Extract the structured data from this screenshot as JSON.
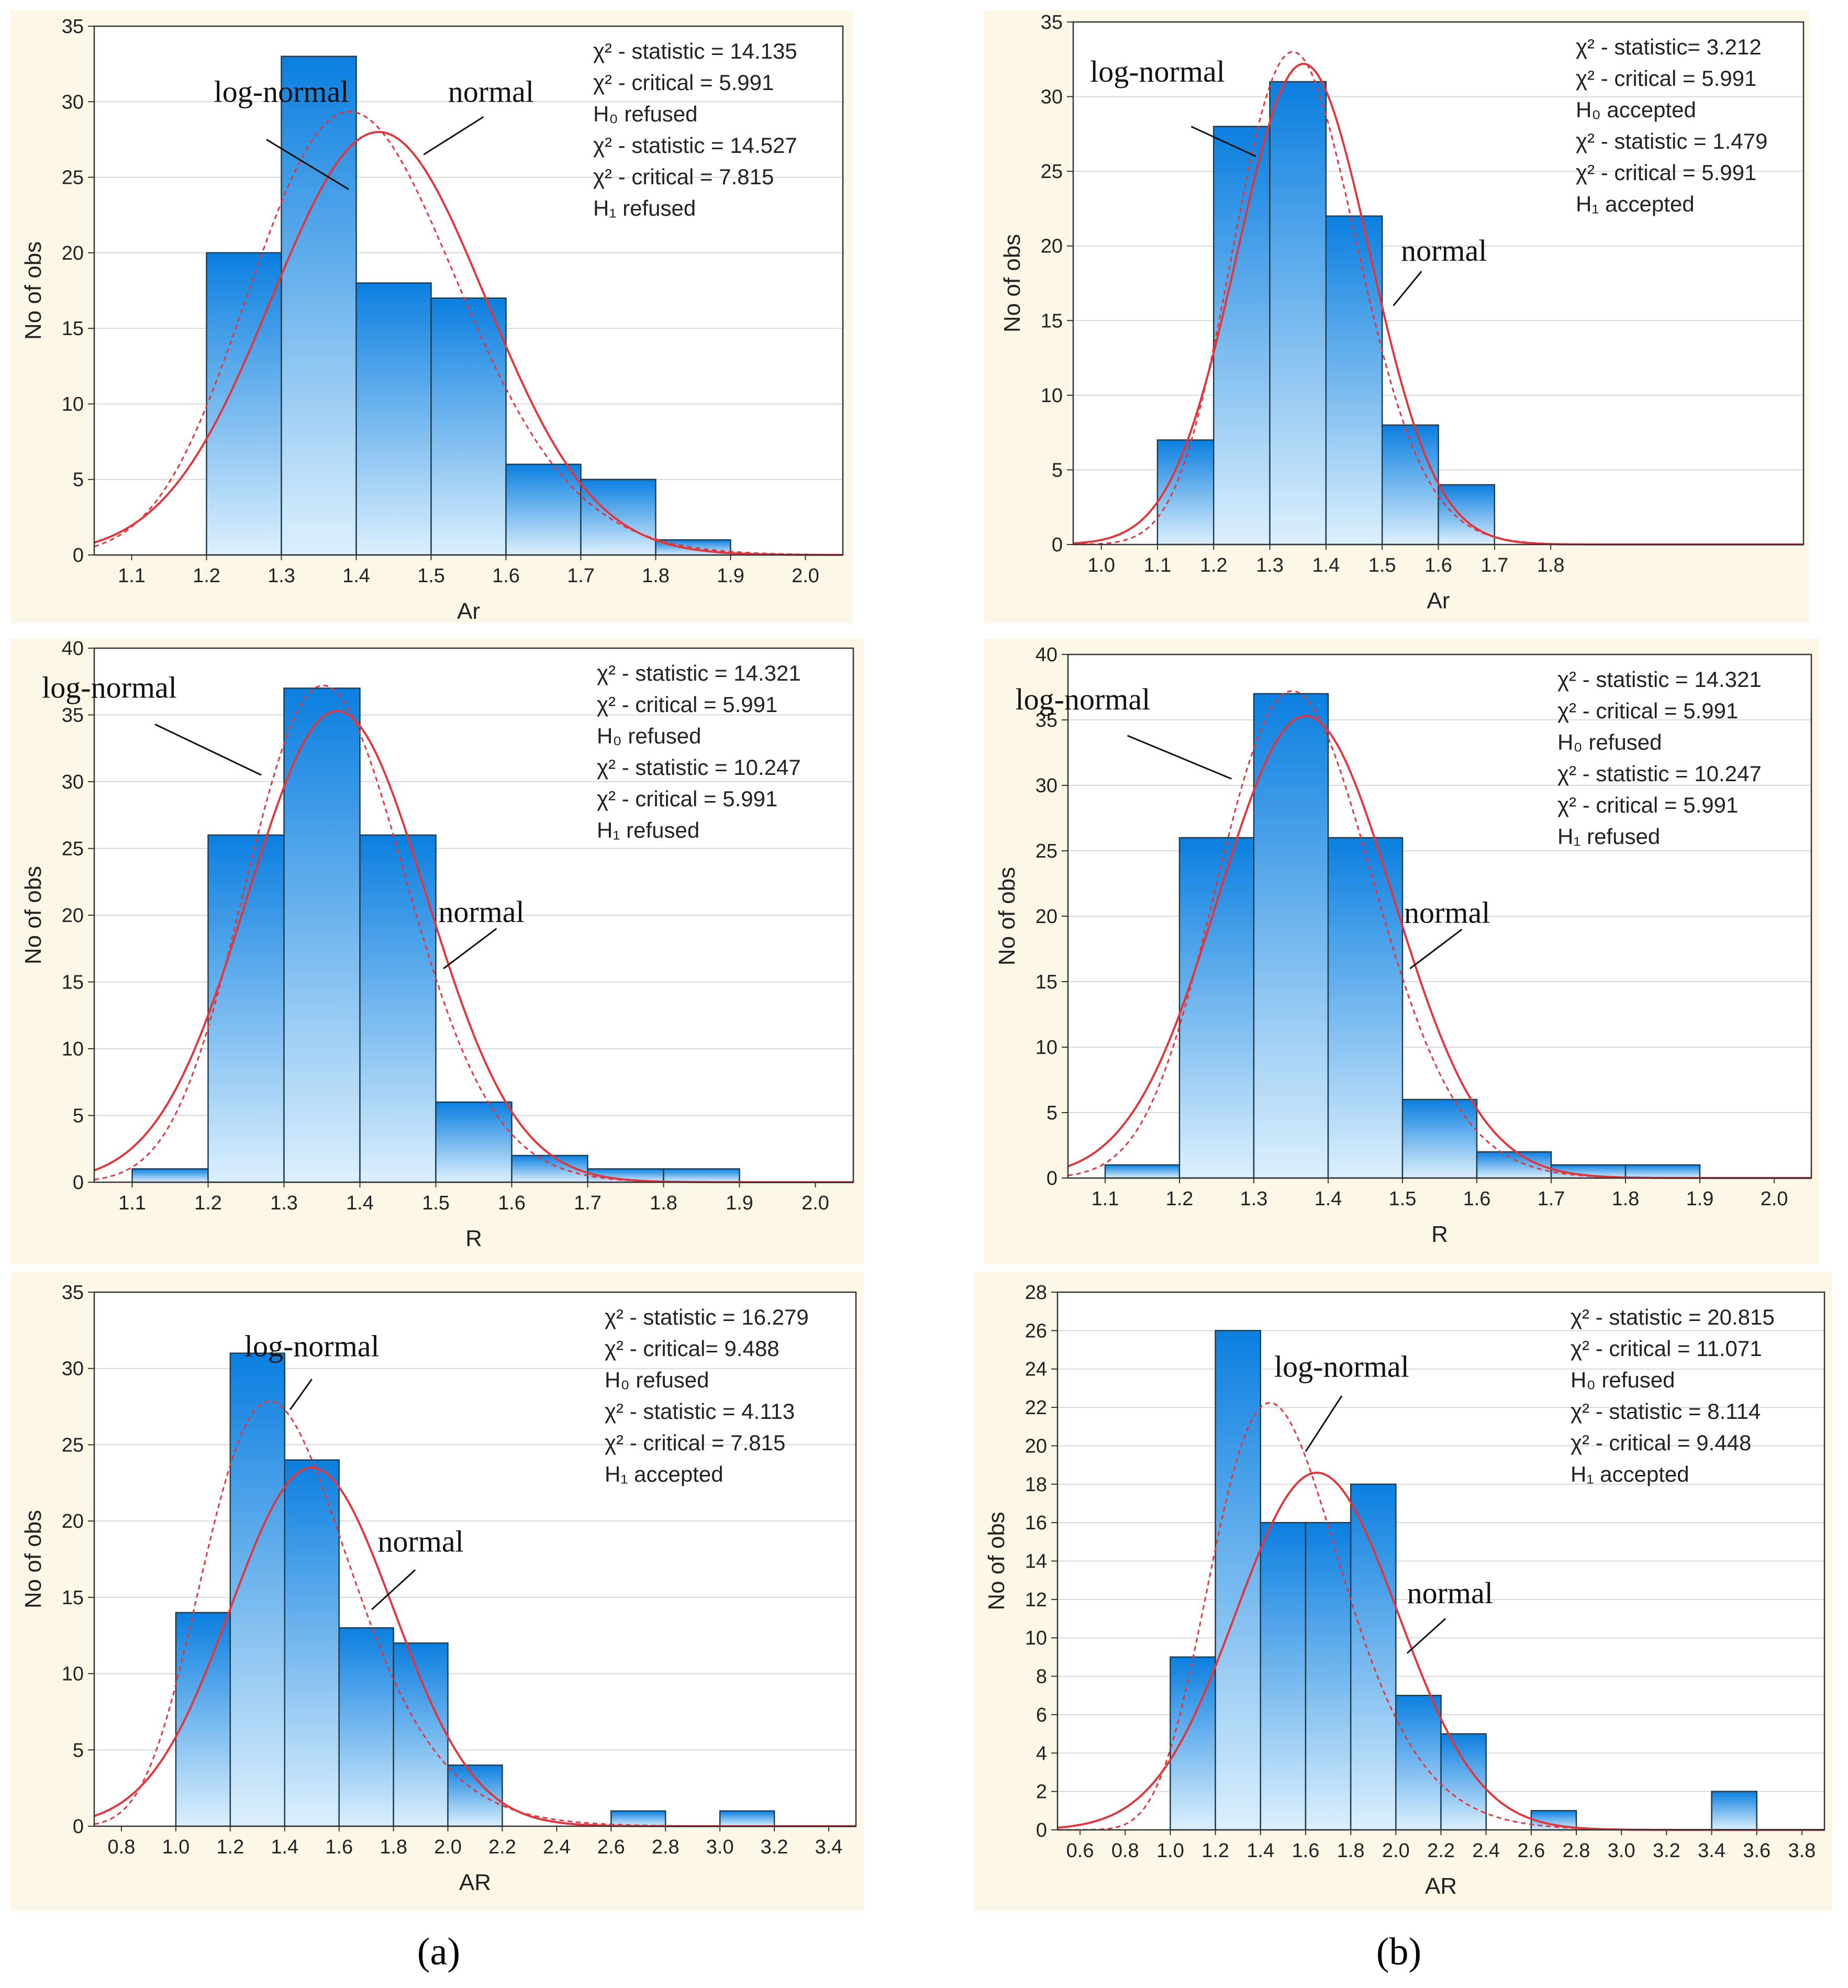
{
  "colors": {
    "panel_bg": "#fdf7e8",
    "plot_bg": "#ffffff",
    "bar_dark": "#0b7fe0",
    "bar_light": "#ddf0fd",
    "bar_stroke": "#1c3d52",
    "normal_curve": "#e0363d",
    "lognormal_curve": "#e0363d",
    "grid": "#d9d9d9"
  },
  "panel_labels": {
    "a": "(a)",
    "b": "(b)"
  },
  "chart_data": [
    {
      "type": "bar",
      "ylabel": "No of obs",
      "xlabel": "Ar",
      "xlim": [
        1.05,
        2.05
      ],
      "ylim": [
        0,
        35
      ],
      "xticks": [
        "1.1",
        "1.2",
        "1.3",
        "1.4",
        "1.5",
        "1.6",
        "1.7",
        "1.8",
        "1.9",
        "2.0"
      ],
      "yticks": [
        "0",
        "5",
        "10",
        "15",
        "20",
        "25",
        "30",
        "35"
      ],
      "bins": [
        [
          1.2,
          1.3,
          20
        ],
        [
          1.3,
          1.4,
          33
        ],
        [
          1.4,
          1.5,
          18
        ],
        [
          1.5,
          1.6,
          17
        ],
        [
          1.6,
          1.7,
          6
        ],
        [
          1.7,
          1.8,
          5
        ],
        [
          1.8,
          1.9,
          1
        ]
      ],
      "normal": {
        "mean": 1.43,
        "sd": 0.143,
        "peak": 28
      },
      "lognormal": {
        "mode": 1.405,
        "sigma": 0.1,
        "peak": 29.2
      },
      "stats": [
        "χ² - statistic = 14.135",
        "χ² - critical = 5.991",
        "H₀ refused",
        "χ² - statistic = 14.527",
        "χ² - critical = 7.815",
        "H₁ refused"
      ],
      "labels": {
        "lognormal": "log-normal",
        "normal": "normal"
      },
      "label_pos": {
        "lognormal": [
          1.3,
          30
        ],
        "normal": [
          1.58,
          30
        ],
        "lognormal_line": [
          [
            1.28,
            27.5
          ],
          [
            1.39,
            24.2
          ]
        ],
        "normal_line": [
          [
            1.57,
            29
          ],
          [
            1.49,
            26.5
          ]
        ]
      }
    },
    {
      "type": "bar",
      "ylabel": "No of obs",
      "xlabel": "Ar",
      "xlim": [
        0.95,
        2.25
      ],
      "ylim": [
        0,
        35
      ],
      "xticks": [
        "1.0",
        "1.1",
        "1.2",
        "1.3",
        "1.4",
        "1.5",
        "1.6",
        "1.7",
        "1.8"
      ],
      "yticks": [
        "0",
        "5",
        "10",
        "15",
        "20",
        "25",
        "30",
        "35"
      ],
      "bins": [
        [
          1.1,
          1.2,
          7
        ],
        [
          1.2,
          1.3,
          28
        ],
        [
          1.3,
          1.4,
          31
        ],
        [
          1.4,
          1.5,
          22
        ],
        [
          1.5,
          1.6,
          8
        ],
        [
          1.6,
          1.7,
          4
        ]
      ],
      "normal": {
        "mean": 1.36,
        "sd": 0.118,
        "peak": 32.2
      },
      "lognormal": {
        "mode": 1.35,
        "sigma": 0.082,
        "peak": 32.9
      },
      "stats": [
        "χ² - statistic= 3.212",
        "χ² - critical = 5.991",
        "H₀ accepted",
        "χ² - statistic = 1.479",
        "χ² - critical = 5.991",
        "H₁ accepted"
      ],
      "labels": {
        "lognormal": "log-normal",
        "normal": "normal"
      },
      "label_pos": {
        "lognormal": [
          1.1,
          31
        ],
        "normal": [
          1.61,
          19
        ],
        "lognormal_line": [
          [
            1.16,
            28
          ],
          [
            1.275,
            26
          ]
        ],
        "normal_line": [
          [
            1.57,
            18.3
          ],
          [
            1.52,
            16
          ]
        ]
      }
    },
    {
      "type": "bar",
      "ylabel": "No of obs",
      "xlabel": "R",
      "xlim": [
        1.05,
        2.05
      ],
      "ylim": [
        0,
        40
      ],
      "xticks": [
        "1.1",
        "1.2",
        "1.3",
        "1.4",
        "1.5",
        "1.6",
        "1.7",
        "1.8",
        "1.9",
        "2.0"
      ],
      "yticks": [
        "0",
        "5",
        "10",
        "15",
        "20",
        "25",
        "30",
        "35",
        "40"
      ],
      "bins": [
        [
          1.1,
          1.2,
          1
        ],
        [
          1.2,
          1.3,
          26
        ],
        [
          1.3,
          1.4,
          37
        ],
        [
          1.4,
          1.5,
          26
        ],
        [
          1.5,
          1.6,
          6
        ],
        [
          1.6,
          1.7,
          2
        ],
        [
          1.7,
          1.8,
          1
        ],
        [
          1.8,
          1.9,
          1
        ]
      ],
      "normal": {
        "mean": 1.37,
        "sd": 0.118,
        "peak": 35.3
      },
      "lognormal": {
        "mode": 1.36,
        "sigma": 0.078,
        "peak": 37.1
      },
      "stats": [
        "χ² - statistic = 14.321",
        "χ² - critical = 5.991",
        "H₀ refused",
        "χ² - statistic = 10.247",
        "χ² - critical = 5.991",
        "H₁ refused"
      ],
      "labels": {
        "lognormal": "log-normal",
        "normal": "normal"
      },
      "label_pos": {
        "lognormal": [
          1.07,
          36.3
        ],
        "normal": [
          1.56,
          19.5
        ],
        "lognormal_line": [
          [
            1.13,
            34.3
          ],
          [
            1.27,
            30.5
          ]
        ],
        "normal_line": [
          [
            1.58,
            19
          ],
          [
            1.51,
            16
          ]
        ]
      }
    },
    {
      "type": "bar",
      "ylabel": "No of obs",
      "xlabel": "R",
      "xlim": [
        1.05,
        2.05
      ],
      "ylim": [
        0,
        40
      ],
      "xticks": [
        "1.1",
        "1.2",
        "1.3",
        "1.4",
        "1.5",
        "1.6",
        "1.7",
        "1.8",
        "1.9",
        "2.0"
      ],
      "yticks": [
        "0",
        "5",
        "10",
        "15",
        "20",
        "25",
        "30",
        "35",
        "40"
      ],
      "bins": [
        [
          1.1,
          1.2,
          1
        ],
        [
          1.2,
          1.3,
          26
        ],
        [
          1.3,
          1.4,
          37
        ],
        [
          1.4,
          1.5,
          26
        ],
        [
          1.5,
          1.6,
          6
        ],
        [
          1.6,
          1.7,
          2
        ],
        [
          1.7,
          1.8,
          1
        ],
        [
          1.8,
          1.9,
          1
        ]
      ],
      "normal": {
        "mean": 1.37,
        "sd": 0.118,
        "peak": 35.3
      },
      "lognormal": {
        "mode": 1.36,
        "sigma": 0.078,
        "peak": 37.1
      },
      "stats": [
        "χ² - statistic = 14.321",
        "χ² - critical = 5.991",
        "H₀ refused",
        "χ² - statistic = 10.247",
        "χ² - critical = 5.991",
        "H₁ refused"
      ],
      "labels": {
        "lognormal": "log-normal",
        "normal": "normal"
      },
      "label_pos": {
        "lognormal": [
          1.07,
          35.8
        ],
        "normal": [
          1.56,
          19.5
        ],
        "lognormal_line": [
          [
            1.13,
            33.8
          ],
          [
            1.27,
            30.5
          ]
        ],
        "normal_line": [
          [
            1.58,
            19
          ],
          [
            1.51,
            16
          ]
        ]
      }
    },
    {
      "type": "bar",
      "ylabel": "No of obs",
      "xlabel": "AR",
      "xlim": [
        0.7,
        3.5
      ],
      "ylim": [
        0,
        35
      ],
      "xticks": [
        "0.8",
        "1.0",
        "1.2",
        "1.4",
        "1.6",
        "1.8",
        "2.0",
        "2.2",
        "2.4",
        "2.6",
        "2.8",
        "3.0",
        "3.2",
        "3.4"
      ],
      "yticks": [
        "0",
        "5",
        "10",
        "15",
        "20",
        "25",
        "30",
        "35"
      ],
      "bins": [
        [
          1.0,
          1.2,
          14
        ],
        [
          1.2,
          1.4,
          31
        ],
        [
          1.4,
          1.6,
          24
        ],
        [
          1.6,
          1.8,
          13
        ],
        [
          1.8,
          2.0,
          12
        ],
        [
          2.0,
          2.2,
          4
        ],
        [
          2.6,
          2.8,
          1
        ],
        [
          3.0,
          3.2,
          1
        ]
      ],
      "normal": {
        "mean": 1.5,
        "sd": 0.3,
        "peak": 23.5
      },
      "lognormal": {
        "mode": 1.4,
        "sigma": 0.2,
        "peak": 27.3
      },
      "stats": [
        "χ² - statistic = 16.279",
        "χ² - critical= 9.488",
        "H₀ refused",
        "χ² - statistic = 4.113",
        "χ² - critical = 7.815",
        "H₁ accepted"
      ],
      "labels": {
        "lognormal": "log-normal",
        "normal": "normal"
      },
      "label_pos": {
        "lognormal": [
          1.5,
          30.8
        ],
        "normal": [
          1.9,
          18
        ],
        "lognormal_line": [
          [
            1.5,
            29.3
          ],
          [
            1.42,
            27.3
          ]
        ],
        "normal_line": [
          [
            1.88,
            16.8
          ],
          [
            1.72,
            14.2
          ]
        ]
      }
    },
    {
      "type": "bar",
      "ylabel": "No of obs",
      "xlabel": "AR",
      "xlim": [
        0.5,
        3.9
      ],
      "ylim": [
        0,
        28
      ],
      "xticks": [
        "0.6",
        "0.8",
        "1.0",
        "1.2",
        "1.4",
        "1.6",
        "1.8",
        "2.0",
        "2.2",
        "2.4",
        "2.6",
        "2.8",
        "3.0",
        "3.2",
        "3.4",
        "3.6",
        "3.8"
      ],
      "yticks": [
        "0",
        "2",
        "4",
        "6",
        "8",
        "10",
        "12",
        "14",
        "16",
        "18",
        "20",
        "22",
        "24",
        "26",
        "28"
      ],
      "bins": [
        [
          1.0,
          1.2,
          9
        ],
        [
          1.2,
          1.4,
          26
        ],
        [
          1.4,
          1.6,
          16
        ],
        [
          1.6,
          1.8,
          16
        ],
        [
          1.8,
          2.0,
          18
        ],
        [
          2.0,
          2.2,
          7
        ],
        [
          2.2,
          2.4,
          5
        ],
        [
          2.6,
          2.8,
          1
        ],
        [
          3.4,
          3.6,
          2
        ]
      ],
      "normal": {
        "mean": 1.65,
        "sd": 0.36,
        "peak": 18.6
      },
      "lognormal": {
        "mode": 1.5,
        "sigma": 0.2,
        "peak": 21.8
      },
      "stats": [
        "χ² - statistic = 20.815",
        "χ² - critical = 11.071",
        "H₀ refused",
        "χ² - statistic = 8.114",
        "χ² - critical = 9.448",
        "H₁ accepted"
      ],
      "labels": {
        "lognormal": "log-normal",
        "normal": "normal"
      },
      "label_pos": {
        "lognormal": [
          1.76,
          23.6
        ],
        "normal": [
          2.24,
          11.8
        ],
        "lognormal_line": [
          [
            1.76,
            22.6
          ],
          [
            1.6,
            19.7
          ]
        ],
        "normal_line": [
          [
            2.22,
            11
          ],
          [
            2.05,
            9.2
          ]
        ]
      }
    }
  ]
}
